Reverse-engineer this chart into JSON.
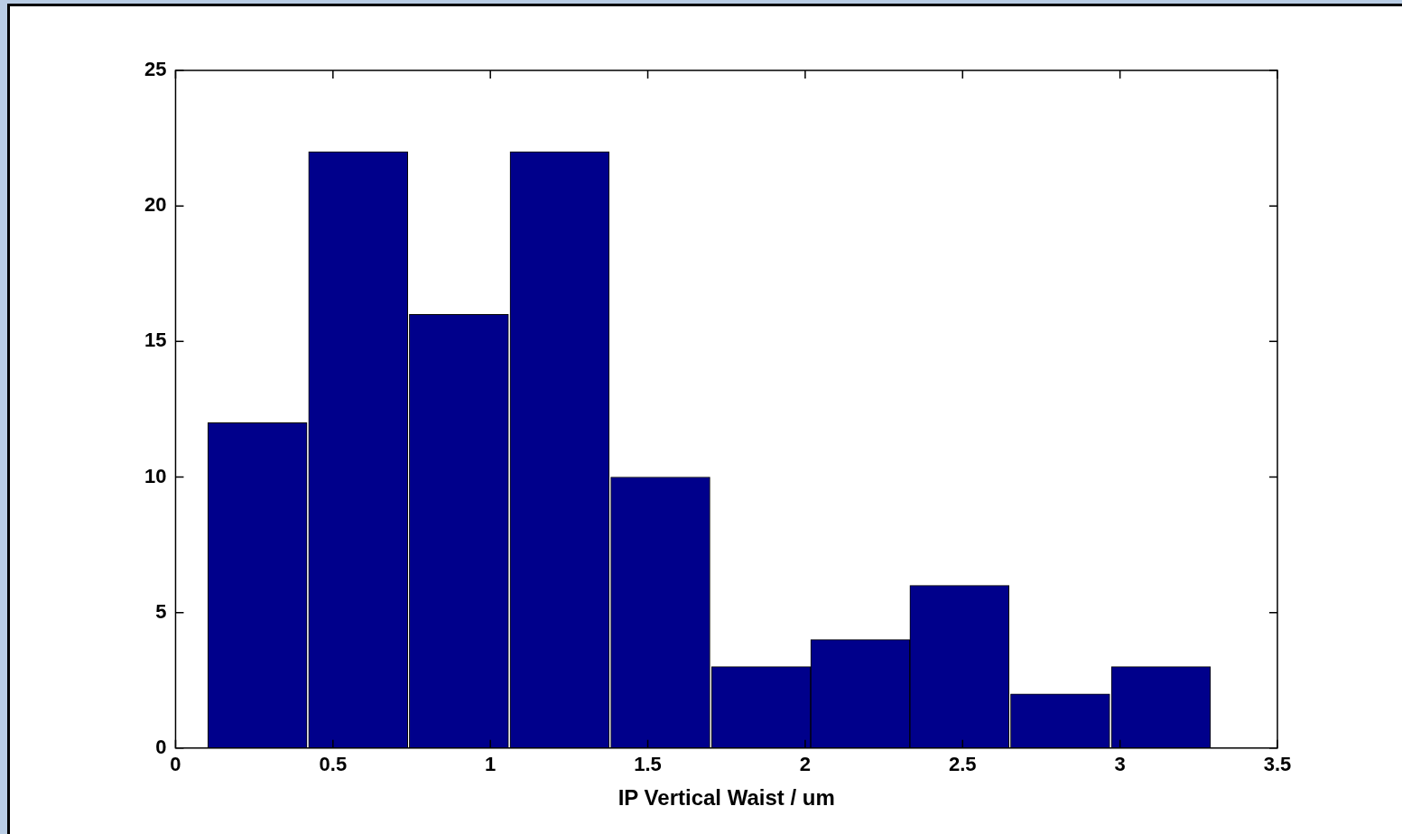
{
  "chart_data": {
    "type": "histogram",
    "xlabel": "IP Vertical Waist / um",
    "bins": [
      0.1,
      0.42,
      0.74,
      1.06,
      1.38,
      1.7,
      2.02,
      2.33,
      2.65,
      2.97,
      3.29
    ],
    "values": [
      12,
      22,
      16,
      22,
      10,
      3,
      4,
      6,
      2,
      3
    ],
    "color": "#00008b",
    "xlim": [
      0,
      3.5
    ],
    "xticks": [
      0,
      0.5,
      1,
      1.5,
      2,
      2.5,
      3,
      3.5
    ],
    "ylim": [
      0,
      25
    ],
    "yticks": [
      0,
      5,
      10,
      15,
      20,
      25
    ],
    "grid": false,
    "legend": false
  }
}
